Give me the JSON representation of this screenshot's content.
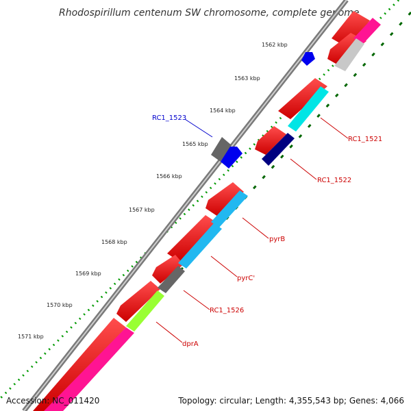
{
  "title": "Rhodospirillum centenum SW chromosome, complete genome",
  "footer": {
    "accession": "Accession: NC_011420",
    "stats": "Topology: circular; Length: 4,355,543 bp; Genes: 4,066"
  },
  "ticks": [
    "1562 kbp",
    "1563 kbp",
    "1564 kbp",
    "1565 kbp",
    "1566 kbp",
    "1567 kbp",
    "1568 kbp",
    "1569 kbp",
    "1570 kbp",
    "1571 kbp"
  ],
  "labels": [
    {
      "id": "rc1-1521",
      "text": "RC1_1521",
      "color": "#cc0000"
    },
    {
      "id": "rc1-1522",
      "text": "RC1_1522",
      "color": "#cc0000"
    },
    {
      "id": "rc1-1523",
      "text": "RC1_1523",
      "color": "#0000cc"
    },
    {
      "id": "pyrb",
      "text": "pyrB",
      "color": "#cc0000"
    },
    {
      "id": "pyrc",
      "text": "pyrC'",
      "color": "#cc0000"
    },
    {
      "id": "rc1-1526",
      "text": "RC1_1526",
      "color": "#cc0000"
    },
    {
      "id": "dpra",
      "text": "dprA",
      "color": "#cc0000"
    }
  ],
  "colors": {
    "cds_red": "#ee0000",
    "cyan": "#00e5e5",
    "sky_blue": "#22b8f0",
    "navy": "#000080",
    "magenta": "#ff1493",
    "lime": "#99ff33",
    "grey_gene": "#666666",
    "light_grey_gene": "#c8c8c8",
    "blue": "#0000ee",
    "backbone": "#888888",
    "tick_green": "#006600",
    "tick_dot_green": "#009900"
  }
}
